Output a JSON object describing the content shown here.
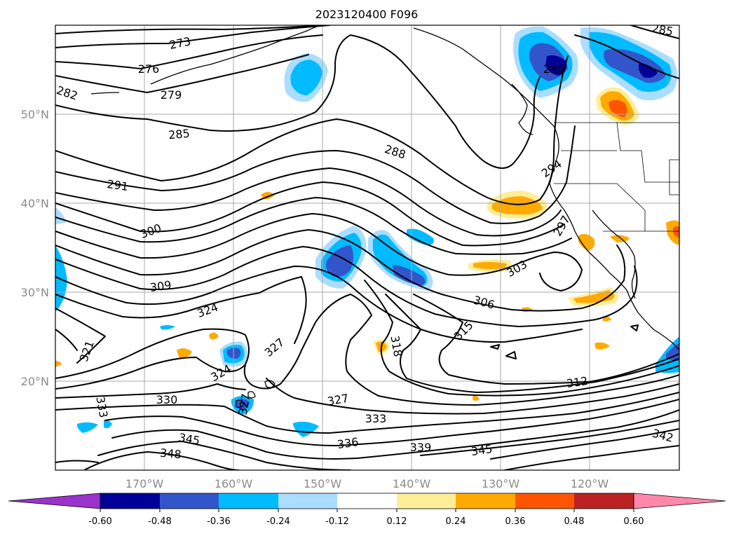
{
  "title": "2023120400 F096",
  "lat_labels": [
    "50°N",
    "40°N",
    "30°N",
    "20°N"
  ],
  "lon_labels": [
    "170°W",
    "160°W",
    "150°W",
    "140°W",
    "130°W",
    "120°W"
  ],
  "contour_labels": [
    "273",
    "276",
    "279",
    "282",
    "285",
    "285",
    "288",
    "291",
    "294",
    "297",
    "300",
    "303",
    "306",
    "309",
    "312",
    "315",
    "318",
    "321",
    "324",
    "324",
    "327",
    "327",
    "327",
    "330",
    "333",
    "333",
    "336",
    "339",
    "342",
    "345",
    "345",
    "348",
    "285"
  ],
  "colorbar": {
    "tick_labels": [
      "-0.60",
      "-0.48",
      "-0.36",
      "-0.24",
      "-0.12",
      "0.12",
      "0.24",
      "0.36",
      "0.48",
      "0.60"
    ],
    "colors": [
      "#9933cc",
      "#000099",
      "#3355cc",
      "#00bbff",
      "#aaddff",
      "#ffffff",
      "#ffee99",
      "#ffaa00",
      "#ff5500",
      "#bb2222",
      "#ff88aa"
    ]
  },
  "fill_colors": {
    "blue_light": "#aaddff",
    "blue": "#00bbff",
    "blue_dark": "#3355cc",
    "navy": "#000099",
    "yellow": "#ffee99",
    "orange": "#ffaa00",
    "red": "#ff5500"
  }
}
